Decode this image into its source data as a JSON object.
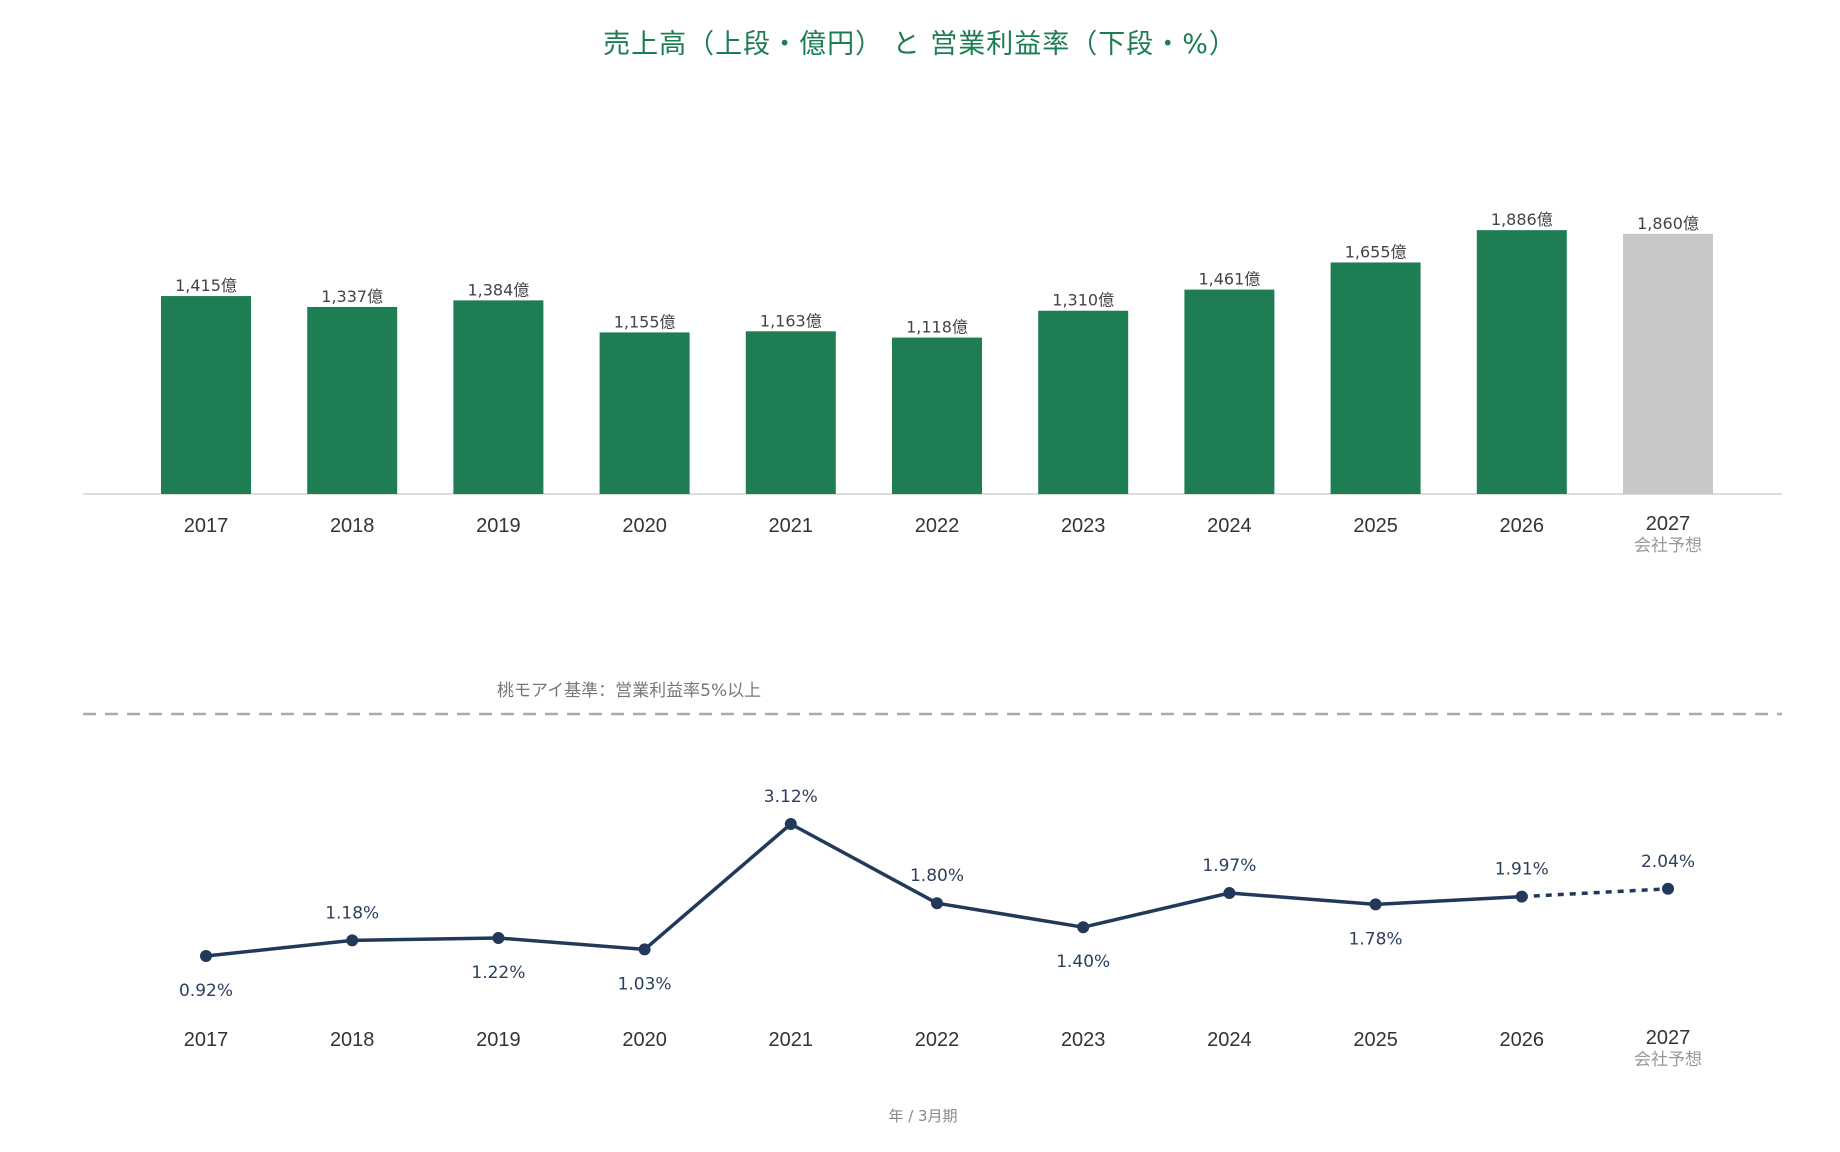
{
  "title": "売上高（上段・億円） と 営業利益率（下段・%）",
  "colors": {
    "title": "#1d7d52",
    "bar": "#1e7d53",
    "forecast_bar": "#c8c8c8",
    "line": "#22395c",
    "reference_line": "#aaaaaa",
    "baseline": "#dddddd"
  },
  "forecast_sublabel": "会社予想",
  "reference_label": "桃モアイ基準：営業利益率5%以上",
  "footer_label": "年 / 3月期",
  "chart_data": [
    {
      "type": "bar",
      "categories": [
        "2017",
        "2018",
        "2019",
        "2020",
        "2021",
        "2022",
        "2023",
        "2024",
        "2025",
        "2026",
        "2027"
      ],
      "values": [
        1415,
        1337,
        1384,
        1155,
        1163,
        1118,
        1310,
        1461,
        1655,
        1886,
        1860
      ],
      "value_labels": [
        "1,415億",
        "1,337億",
        "1,384億",
        "1,155億",
        "1,163億",
        "1,118億",
        "1,310億",
        "1,461億",
        "1,655億",
        "1,886億",
        "1,860億"
      ],
      "forecast_index": 10,
      "ylim": [
        0,
        2000
      ],
      "grid": false
    },
    {
      "type": "line",
      "categories": [
        "2017",
        "2018",
        "2019",
        "2020",
        "2021",
        "2022",
        "2023",
        "2024",
        "2025",
        "2026",
        "2027"
      ],
      "values": [
        0.92,
        1.18,
        1.22,
        1.03,
        3.12,
        1.8,
        1.4,
        1.97,
        1.78,
        1.91,
        2.04
      ],
      "value_labels": [
        "0.92%",
        "1.18%",
        "1.22%",
        "1.03%",
        "3.12%",
        "1.80%",
        "1.40%",
        "1.97%",
        "1.78%",
        "1.91%",
        "2.04%"
      ],
      "label_positions": [
        "below",
        "above",
        "below",
        "below",
        "above",
        "above",
        "below",
        "above",
        "below",
        "above",
        "above"
      ],
      "forecast_index": 10,
      "reference_value": 5,
      "grid": false
    }
  ]
}
